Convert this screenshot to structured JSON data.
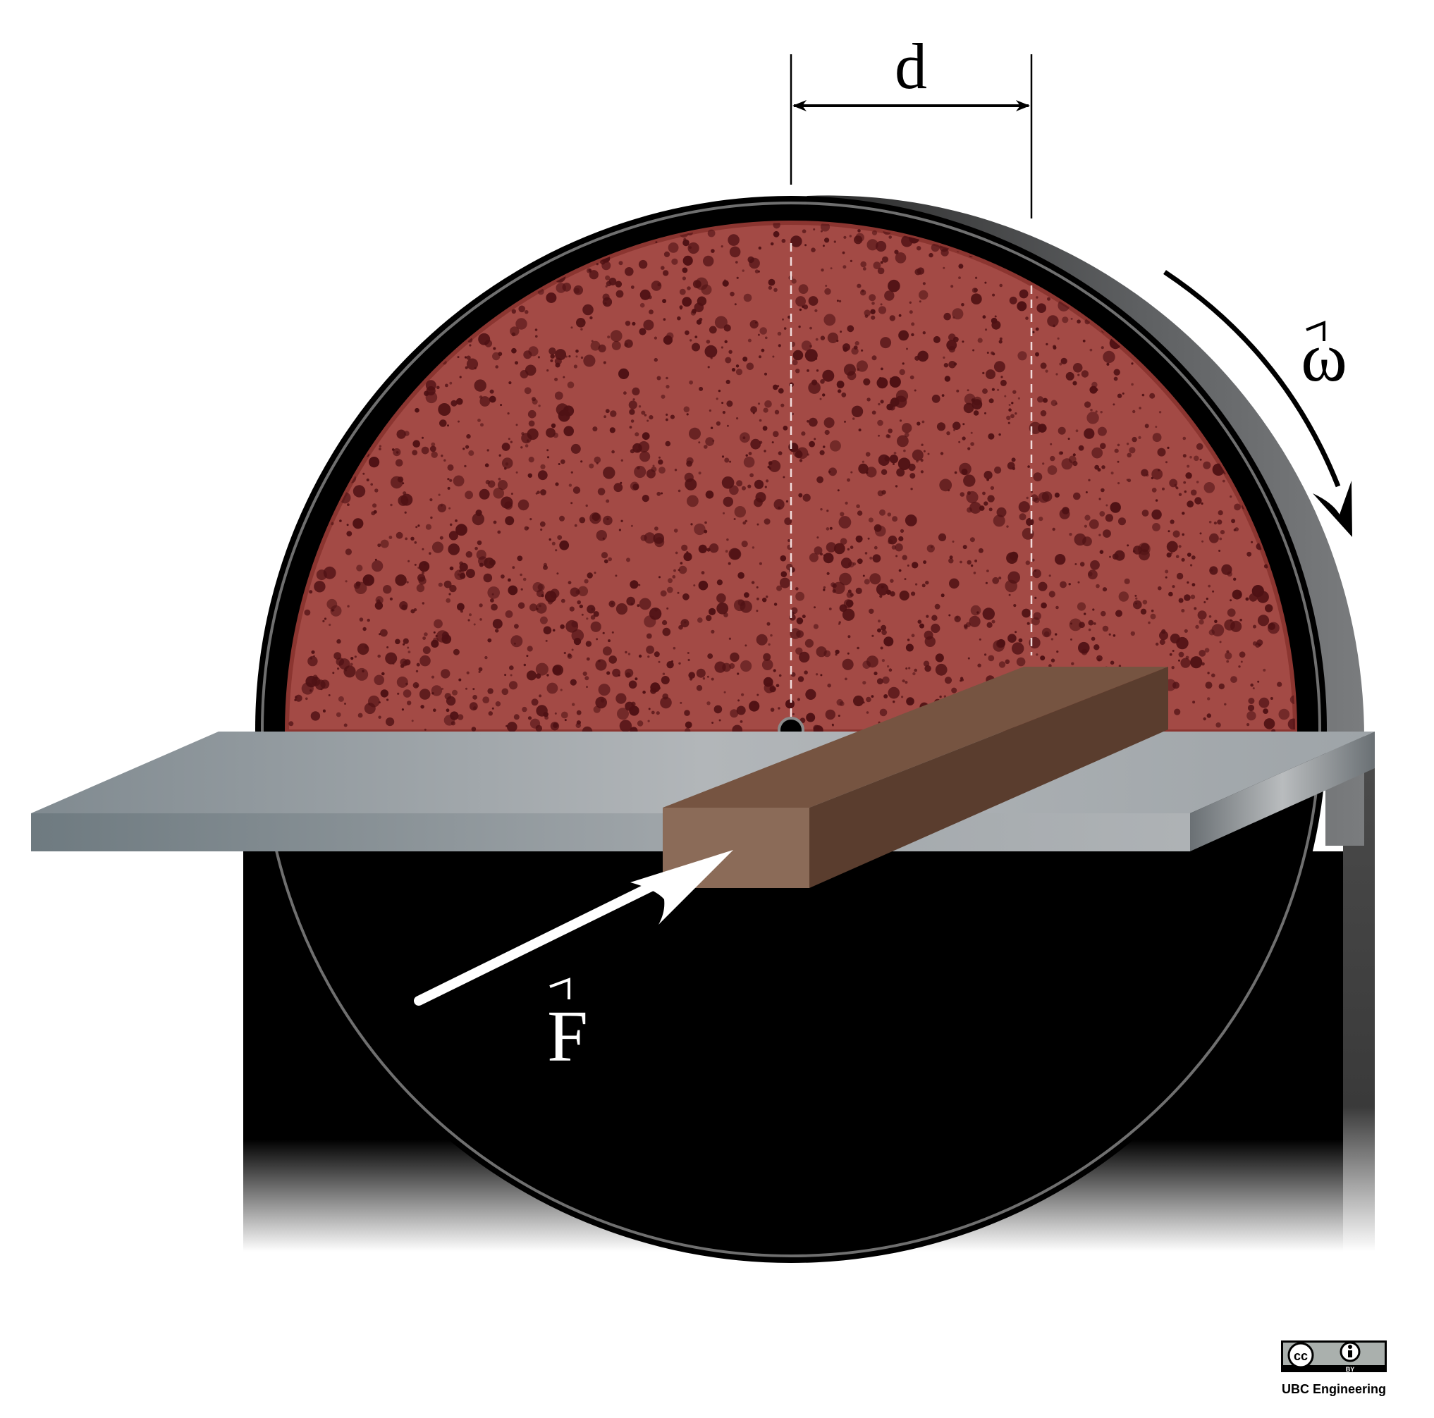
{
  "diagram": {
    "labels": {
      "distance": "d",
      "angular_velocity": "ω",
      "force": "F"
    },
    "license": {
      "cc_badge": "cc",
      "by_badge": "BY",
      "credit": "UBC Engineering"
    }
  },
  "colors": {
    "wheel_surface": "#a34a45",
    "wheel_speckle": "#4f1114",
    "rim": "#000000",
    "rim_side": "#5e6062",
    "table_top": "#a5aaae",
    "table_front": "#7d858b",
    "stick_front": "#8b6b58",
    "stick_top": "#765441",
    "stick_side": "#5a3d2e",
    "force_arrow": "#ffffff",
    "housing": "#000000"
  }
}
